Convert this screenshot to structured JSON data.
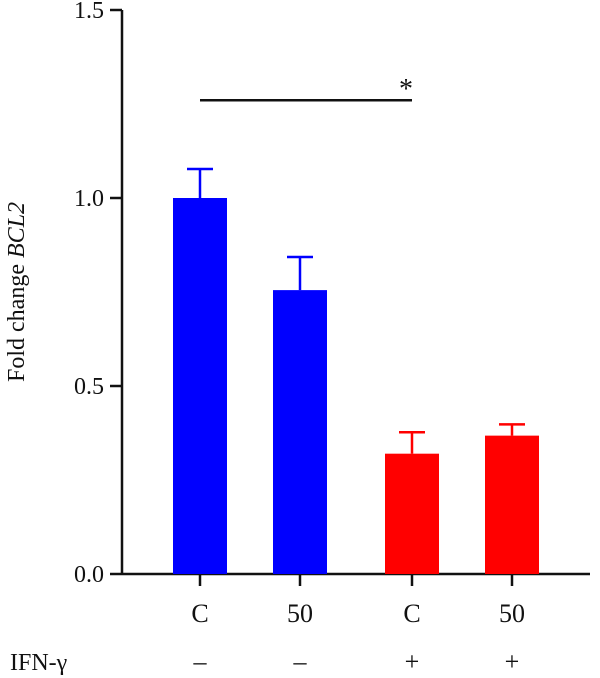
{
  "chart_data": {
    "type": "bar",
    "categories": [
      "C",
      "50",
      "C",
      "50"
    ],
    "values": [
      1.0,
      0.755,
      0.32,
      0.368
    ],
    "errors": [
      0.077,
      0.088,
      0.057,
      0.03
    ],
    "colors": [
      "#0000ff",
      "#0000ff",
      "#ff0000",
      "#ff0000"
    ],
    "ylabel_prefix": "Fold change ",
    "ylabel_gene": "BCL2",
    "ylim": [
      0,
      1.5
    ],
    "yticks": [
      "0.0",
      "0.5",
      "1.0",
      "1.5"
    ],
    "condition_row": {
      "label": "IFN-γ",
      "values": [
        "–",
        "–",
        "+",
        "+"
      ]
    },
    "significance": {
      "from": 0,
      "to": 2,
      "y": 1.26,
      "marker": "*"
    }
  }
}
